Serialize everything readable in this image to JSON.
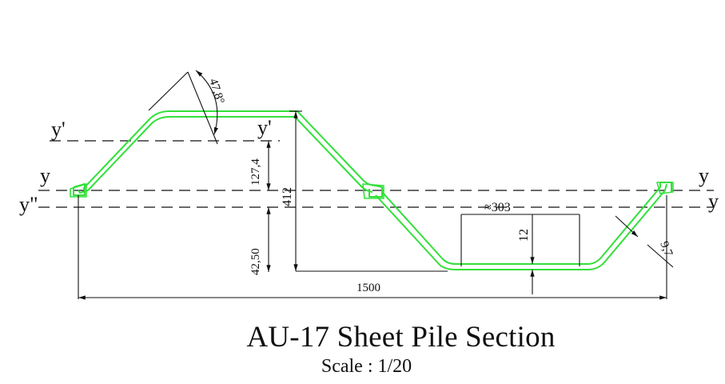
{
  "title": "AU-17 Sheet Pile Section",
  "scale": "Scale : 1/20",
  "axes": {
    "y_prime_left": "y'",
    "y_prime_right": "y'",
    "y_left": "y",
    "y_right": "y",
    "y_double_prime_left": "y\"",
    "y_double_prime_right": "y"
  },
  "dimensions": {
    "angle": "47,8°",
    "height_127": "127,4",
    "height_412": "412",
    "height_42": "42,50",
    "width_303": "≈303",
    "thickness_12": "12",
    "thickness_9": "9,7",
    "width_1500": "1500"
  },
  "colors": {
    "profile": "#32e03a",
    "lines": "#111111"
  }
}
